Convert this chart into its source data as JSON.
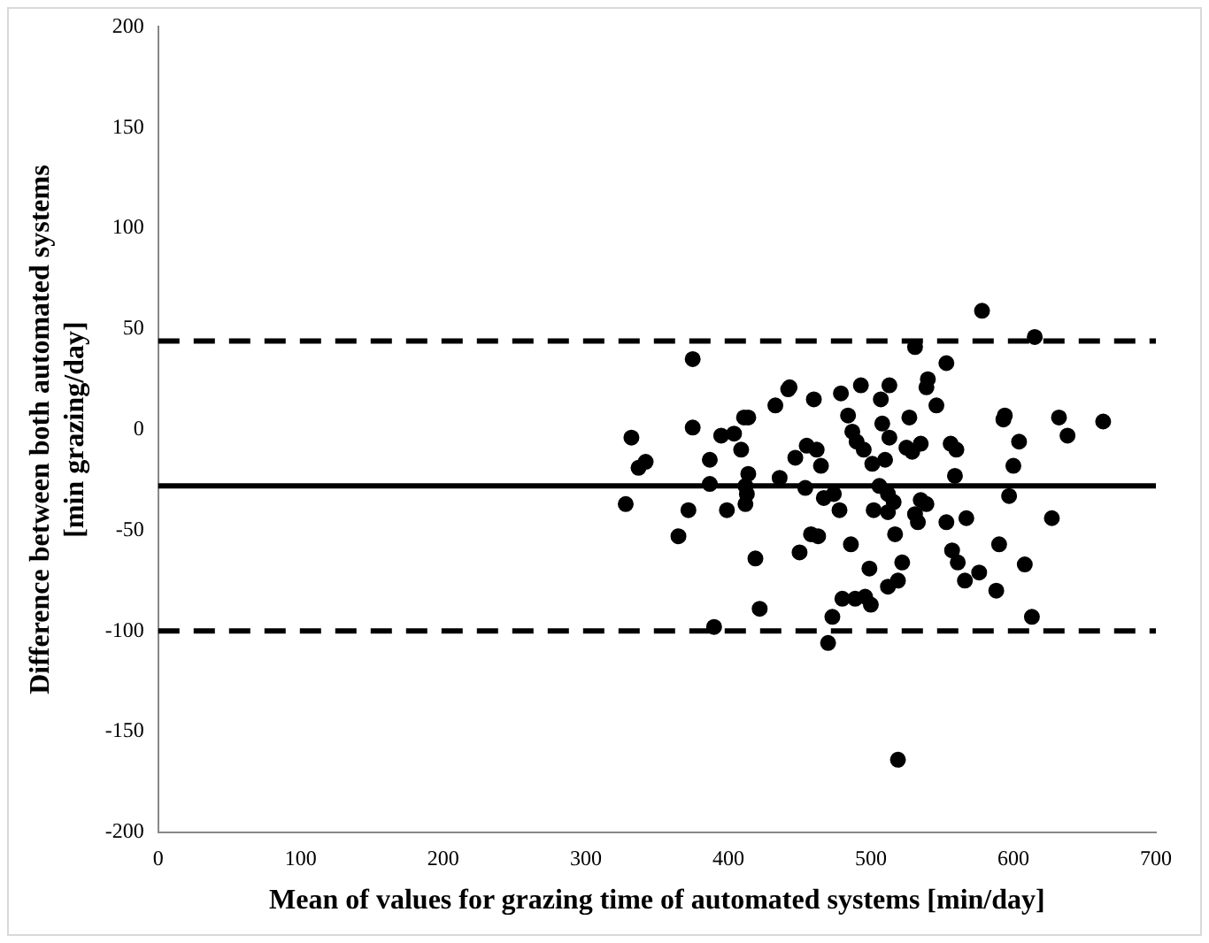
{
  "chart_data": {
    "type": "scatter",
    "xlabel": "Mean of values for grazing time of automated systems [min/day]",
    "ylabel": "Difference between both automated systems\n[min grazing/day]",
    "series": [
      {
        "color": "#000000",
        "x": [
          375,
          332,
          342,
          337,
          375,
          395,
          404,
          411,
          414,
          409,
          387,
          414,
          412,
          387,
          413,
          412,
          399,
          372,
          328,
          433,
          442,
          443,
          460,
          479,
          493,
          484,
          487,
          490,
          495,
          447,
          455,
          462,
          465,
          436,
          454,
          467,
          474,
          478,
          458,
          463,
          365,
          419,
          422,
          390,
          450,
          486,
          480,
          489,
          496,
          473,
          470,
          499,
          578,
          615,
          531,
          553,
          513,
          540,
          539,
          507,
          546,
          527,
          594,
          593,
          632,
          663,
          508,
          638,
          604,
          513,
          535,
          556,
          560,
          525,
          529,
          510,
          501,
          600,
          559,
          597,
          506,
          512,
          516,
          535,
          539,
          502,
          512,
          531,
          533,
          553,
          567,
          627,
          517,
          522,
          519,
          512,
          500,
          557,
          561,
          566,
          576,
          590,
          588,
          608,
          613,
          519
        ],
        "values": [
          35,
          -4,
          -16,
          -19,
          1,
          -3,
          -2,
          6,
          6,
          -10,
          -15,
          -22,
          -28,
          -27,
          -32,
          -37,
          -40,
          -40,
          -37,
          12,
          20,
          21,
          15,
          18,
          22,
          7,
          -1,
          -6,
          -10,
          -14,
          -8,
          -10,
          -18,
          -24,
          -29,
          -34,
          -32,
          -40,
          -52,
          -53,
          -53,
          -64,
          -89,
          -98,
          -61,
          -57,
          -84,
          -84,
          -83,
          -93,
          -106,
          -69,
          59,
          46,
          41,
          33,
          22,
          25,
          21,
          15,
          12,
          6,
          7,
          5,
          6,
          4,
          3,
          -3,
          -6,
          -4,
          -7,
          -7,
          -10,
          -9,
          -11,
          -15,
          -17,
          -18,
          -23,
          -33,
          -28,
          -32,
          -36,
          -35,
          -37,
          -40,
          -41,
          -42,
          -46,
          -46,
          -44,
          -44,
          -52,
          -66,
          -75,
          -78,
          -87,
          -60,
          -66,
          -75,
          -71,
          -57,
          -80,
          -67,
          -93,
          -164
        ]
      }
    ],
    "marker": "circle",
    "xlim": [
      0,
      700
    ],
    "xticks": [
      0,
      100,
      200,
      300,
      400,
      500,
      600,
      700
    ],
    "ylim": [
      -200,
      200
    ],
    "yticks": [
      -200,
      -150,
      -100,
      -50,
      0,
      50,
      100,
      150,
      200
    ],
    "grid": false,
    "legend": false,
    "ref_lines": [
      {
        "axis": "y",
        "value": 44,
        "color": "#000000",
        "line_style": "dashed"
      },
      {
        "axis": "y",
        "value": -28,
        "color": "#000000",
        "line_style": "solid"
      },
      {
        "axis": "y",
        "value": -100,
        "color": "#000000",
        "line_style": "dashed"
      }
    ]
  }
}
